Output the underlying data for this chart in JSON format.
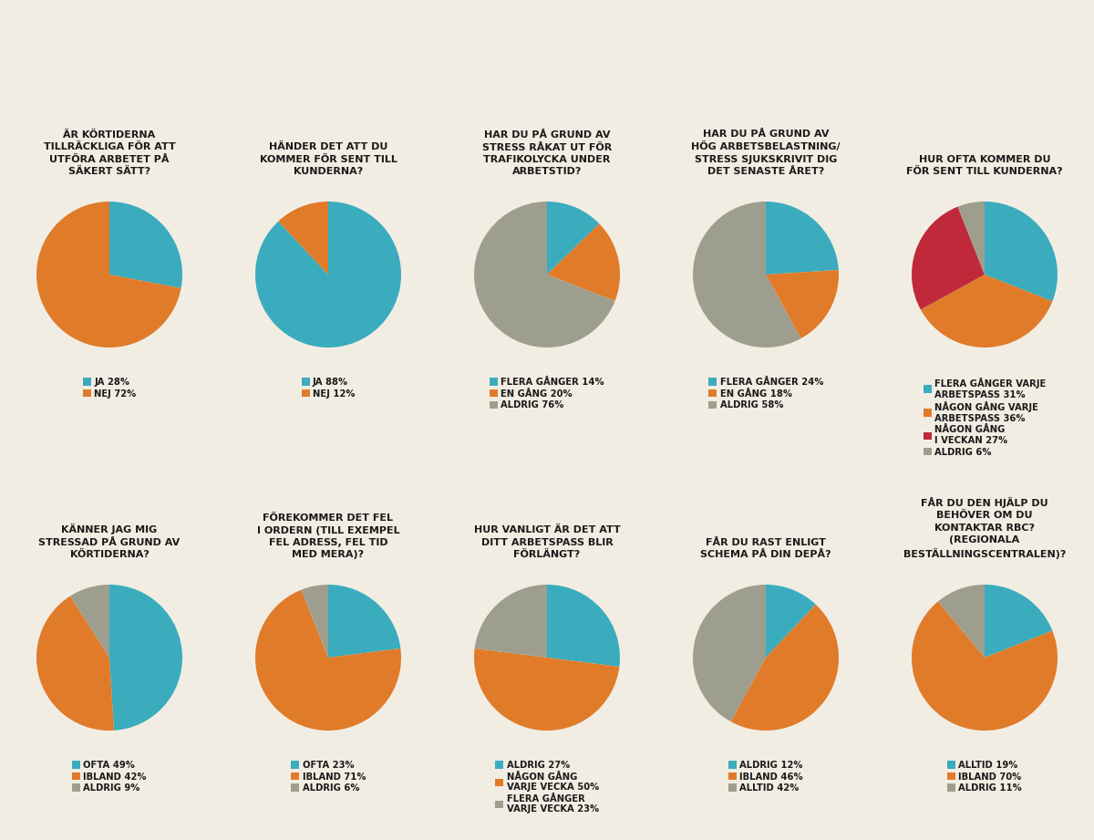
{
  "background_color": "#f2ede3",
  "teal": "#3aacbe",
  "orange": "#e07b2a",
  "gray": "#9e9e8e",
  "red": "#c0293a",
  "text_color": "#1a1a1a",
  "charts": [
    {
      "title": "ÄR KÖRTIDERNA\nTILLRÄCKLIGA FÖR ATT\nUTFÖRA ARBETET PÅ\nSÄKERT SÄTT?",
      "values": [
        28,
        72
      ],
      "colors": [
        "#3aacbe",
        "#e07b2a"
      ],
      "labels": [
        "JA 28%",
        "NEJ 72%"
      ],
      "startangle": 90,
      "counterclock": false
    },
    {
      "title": "HÄNDER DET ATT DU\nKOMMER FÖR SENT TILL\nKUNDERNA?",
      "values": [
        88,
        12
      ],
      "colors": [
        "#3aacbe",
        "#e07b2a"
      ],
      "labels": [
        "JA 88%",
        "NEJ 12%"
      ],
      "startangle": 90,
      "counterclock": false
    },
    {
      "title": "HAR DU PÅ GRUND AV\nSTRESS RÅKAT UT FÖR\nTRAFIKOLYCKA UNDER\nARBETSTID?",
      "values": [
        14,
        20,
        76
      ],
      "colors": [
        "#3aacbe",
        "#e07b2a",
        "#9e9e8e"
      ],
      "labels": [
        "FLERA GÅNGER 14%",
        "EN GÅNG 20%",
        "ALDRIG 76%"
      ],
      "startangle": 90,
      "counterclock": false
    },
    {
      "title": "HAR DU PÅ GRUND AV\nHÖG ARBETSBELASTNING/\nSTRESS SJUKSKRIVIT DIG\nDET SENASTE ÅRET?",
      "values": [
        24,
        18,
        58
      ],
      "colors": [
        "#3aacbe",
        "#e07b2a",
        "#9e9e8e"
      ],
      "labels": [
        "FLERA GÅNGER 24%",
        "EN GÅNG 18%",
        "ALDRIG 58%"
      ],
      "startangle": 90,
      "counterclock": false
    },
    {
      "title": "HUR OFTA KOMMER DU\nFÖR SENT TILL KUNDERNA?",
      "values": [
        31,
        36,
        27,
        6
      ],
      "colors": [
        "#3aacbe",
        "#e07b2a",
        "#c0293a",
        "#9e9e8e"
      ],
      "labels": [
        "FLERA GÅNGER VARJE\nARBETSPASS 31%",
        "NÅGON GÅNG VARJE\nARBETSPASS 36%",
        "NÅGON GÅNG\nI VECKAN 27%",
        "ALDRIG 6%"
      ],
      "startangle": 90,
      "counterclock": false
    },
    {
      "title": "KÄNNER JAG MIG\nSTRESSAD PÅ GRUND AV\nKÖRTIDERNA?",
      "values": [
        49,
        42,
        9
      ],
      "colors": [
        "#3aacbe",
        "#e07b2a",
        "#9e9e8e"
      ],
      "labels": [
        "OFTA 49%",
        "IBLAND 42%",
        "ALDRIG 9%"
      ],
      "startangle": 90,
      "counterclock": false
    },
    {
      "title": "FÖREKOMMER DET FEL\nI ORDERN (TILL EXEMPEL\nFEL ADRESS, FEL TID\nMED MERA)?",
      "values": [
        23,
        71,
        6
      ],
      "colors": [
        "#3aacbe",
        "#e07b2a",
        "#9e9e8e"
      ],
      "labels": [
        "OFTA 23%",
        "IBLAND 71%",
        "ALDRIG 6%"
      ],
      "startangle": 90,
      "counterclock": false
    },
    {
      "title": "HUR VANLIGT ÄR DET ATT\nDITT ARBETSPASS BLIR\nFÖRLÄNGT?",
      "values": [
        27,
        50,
        23
      ],
      "colors": [
        "#3aacbe",
        "#e07b2a",
        "#9e9e8e"
      ],
      "labels": [
        "ALDRIG 27%",
        "NÅGON GÅNG\nVARJE VECKA 50%",
        "FLERA GÅNGER\nVARJE VECKA 23%"
      ],
      "startangle": 90,
      "counterclock": false
    },
    {
      "title": "FÅR DU RAST ENLIGT\nSCHEMA PÅ DIN DEPÅ?",
      "values": [
        12,
        46,
        42
      ],
      "colors": [
        "#3aacbe",
        "#e07b2a",
        "#9e9e8e"
      ],
      "labels": [
        "ALDRIG 12%",
        "IBLAND 46%",
        "ALLTID 42%"
      ],
      "startangle": 90,
      "counterclock": false
    },
    {
      "title": "FÅR DU DEN HJÄLP DU\nBEHÖVER OM DU\nKONTAKTAR RBC?\n(REGIONALA\nBESTÄLLNINGSCENTRALEN)?",
      "values": [
        19,
        70,
        11
      ],
      "colors": [
        "#3aacbe",
        "#e07b2a",
        "#9e9e8e"
      ],
      "labels": [
        "ALLTID 19%",
        "IBLAND 70%",
        "ALDRIG 11%"
      ],
      "startangle": 90,
      "counterclock": false
    }
  ]
}
